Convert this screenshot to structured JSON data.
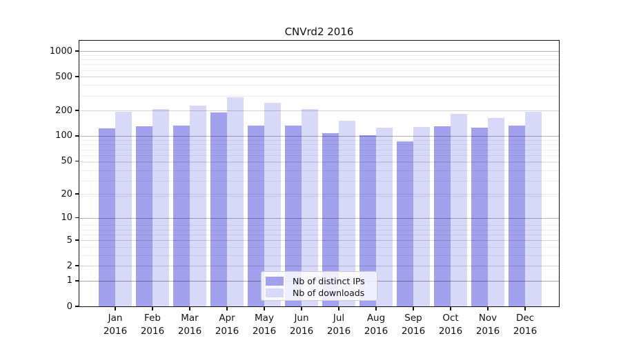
{
  "chart_data": {
    "type": "bar",
    "title": "CNVrd2 2016",
    "categories": [
      "Jan",
      "Feb",
      "Mar",
      "Apr",
      "May",
      "Jun",
      "Jul",
      "Aug",
      "Sep",
      "Oct",
      "Nov",
      "Dec"
    ],
    "year": "2016",
    "series": [
      {
        "name": "Nb of distinct IPs",
        "color": "#a1a1ee",
        "values": [
          123,
          130,
          132,
          189,
          133,
          132,
          108,
          102,
          86,
          130,
          126,
          132
        ]
      },
      {
        "name": "Nb of downloads",
        "color": "#d8d8f8",
        "values": [
          193,
          209,
          229,
          287,
          246,
          207,
          152,
          125,
          127,
          183,
          163,
          194
        ]
      }
    ],
    "y_ticks": [
      0,
      1,
      2,
      5,
      10,
      20,
      50,
      100,
      200,
      500,
      1000
    ],
    "y_scale": "log10(1+value)",
    "ylim": [
      0,
      1320
    ],
    "xlabel": "",
    "ylabel": "",
    "grid": "on",
    "legend_position": "bottom-center-inside"
  }
}
